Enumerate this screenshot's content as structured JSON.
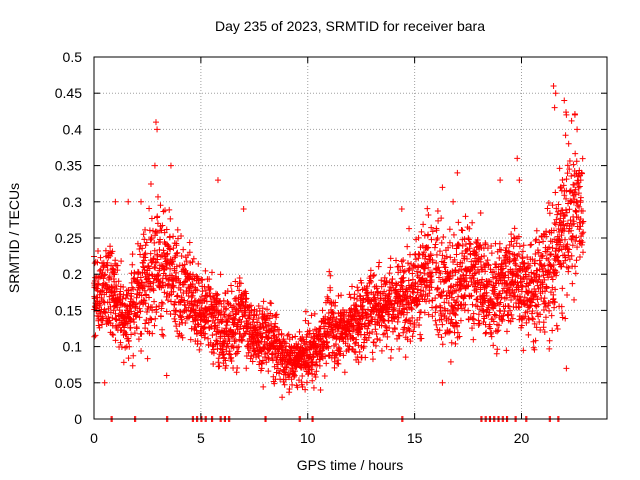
{
  "chart_data": {
    "type": "scatter",
    "title": "Day 235 of 2023, SRMTID for receiver bara",
    "xlabel": "GPS time / hours",
    "ylabel": "SRMTID / TECUs",
    "xlim": [
      0,
      24
    ],
    "ylim": [
      0,
      0.5
    ],
    "x_ticks": [
      0,
      5,
      10,
      15,
      20
    ],
    "x_tick_labels": [
      "0",
      "5",
      "10",
      "15",
      "20"
    ],
    "y_ticks": [
      0,
      0.05,
      0.1,
      0.15,
      0.2,
      0.25,
      0.3,
      0.35,
      0.4,
      0.45,
      0.5
    ],
    "y_tick_labels": [
      "0",
      "0.05",
      "0.1",
      "0.15",
      "0.2",
      "0.25",
      "0.3",
      "0.35",
      "0.4",
      "0.45",
      "0.5"
    ],
    "grid": true,
    "marker": "+",
    "color": "#ff0000",
    "trend": {
      "hours": [
        0,
        0.5,
        1,
        1.5,
        2,
        2.5,
        3,
        3.5,
        4,
        4.5,
        5,
        5.5,
        6,
        6.5,
        7,
        7.5,
        8,
        8.5,
        9,
        9.5,
        10,
        10.5,
        11,
        11.5,
        12,
        12.5,
        13,
        13.5,
        14,
        14.5,
        15,
        15.5,
        16,
        16.5,
        17,
        17.5,
        18,
        18.5,
        19,
        19.5,
        20,
        20.5,
        21,
        21.5,
        22,
        22.5,
        23
      ],
      "center": [
        0.16,
        0.19,
        0.17,
        0.14,
        0.17,
        0.2,
        0.22,
        0.2,
        0.17,
        0.18,
        0.14,
        0.15,
        0.12,
        0.13,
        0.15,
        0.11,
        0.12,
        0.1,
        0.08,
        0.08,
        0.09,
        0.1,
        0.13,
        0.12,
        0.13,
        0.14,
        0.15,
        0.16,
        0.16,
        0.17,
        0.18,
        0.2,
        0.19,
        0.17,
        0.18,
        0.2,
        0.2,
        0.17,
        0.18,
        0.2,
        0.19,
        0.17,
        0.2,
        0.21,
        0.26,
        0.3,
        0.28
      ],
      "spread": [
        0.05,
        0.06,
        0.06,
        0.05,
        0.06,
        0.07,
        0.08,
        0.06,
        0.06,
        0.05,
        0.05,
        0.05,
        0.05,
        0.05,
        0.05,
        0.04,
        0.05,
        0.04,
        0.03,
        0.03,
        0.04,
        0.04,
        0.05,
        0.04,
        0.04,
        0.05,
        0.05,
        0.05,
        0.05,
        0.05,
        0.06,
        0.06,
        0.07,
        0.07,
        0.07,
        0.07,
        0.06,
        0.06,
        0.06,
        0.07,
        0.06,
        0.06,
        0.07,
        0.08,
        0.1,
        0.1,
        0.08
      ]
    },
    "peak_points": [
      {
        "x": 1.0,
        "y": 0.3
      },
      {
        "x": 1.6,
        "y": 0.3
      },
      {
        "x": 2.2,
        "y": 0.3
      },
      {
        "x": 2.9,
        "y": 0.41
      },
      {
        "x": 2.95,
        "y": 0.4
      },
      {
        "x": 2.85,
        "y": 0.35
      },
      {
        "x": 3.6,
        "y": 0.35
      },
      {
        "x": 5.8,
        "y": 0.33
      },
      {
        "x": 7.0,
        "y": 0.29
      },
      {
        "x": 14.4,
        "y": 0.29
      },
      {
        "x": 17.0,
        "y": 0.34
      },
      {
        "x": 16.8,
        "y": 0.3
      },
      {
        "x": 16.3,
        "y": 0.32
      },
      {
        "x": 19.0,
        "y": 0.33
      },
      {
        "x": 19.8,
        "y": 0.36
      },
      {
        "x": 19.9,
        "y": 0.33
      },
      {
        "x": 21.5,
        "y": 0.46
      },
      {
        "x": 21.6,
        "y": 0.45
      },
      {
        "x": 21.55,
        "y": 0.43
      },
      {
        "x": 22.0,
        "y": 0.44
      },
      {
        "x": 22.1,
        "y": 0.42
      },
      {
        "x": 22.5,
        "y": 0.42
      },
      {
        "x": 22.6,
        "y": 0.4
      },
      {
        "x": 0.5,
        "y": 0.05
      },
      {
        "x": 3.4,
        "y": 0.06
      },
      {
        "x": 8.8,
        "y": 0.03
      },
      {
        "x": 10.6,
        "y": 0.04
      },
      {
        "x": 16.3,
        "y": 0.05
      },
      {
        "x": 22.1,
        "y": 0.07
      }
    ],
    "zero_points_hours": [
      0.8,
      1.9,
      3.4,
      4.6,
      4.8,
      5.0,
      5.2,
      5.5,
      5.9,
      6.1,
      6.3,
      8.0,
      9.6,
      10.2,
      14.4,
      18.1,
      18.3,
      18.5,
      18.7,
      18.9,
      19.1,
      19.3,
      19.7,
      20.2,
      21.3,
      21.7
    ]
  }
}
